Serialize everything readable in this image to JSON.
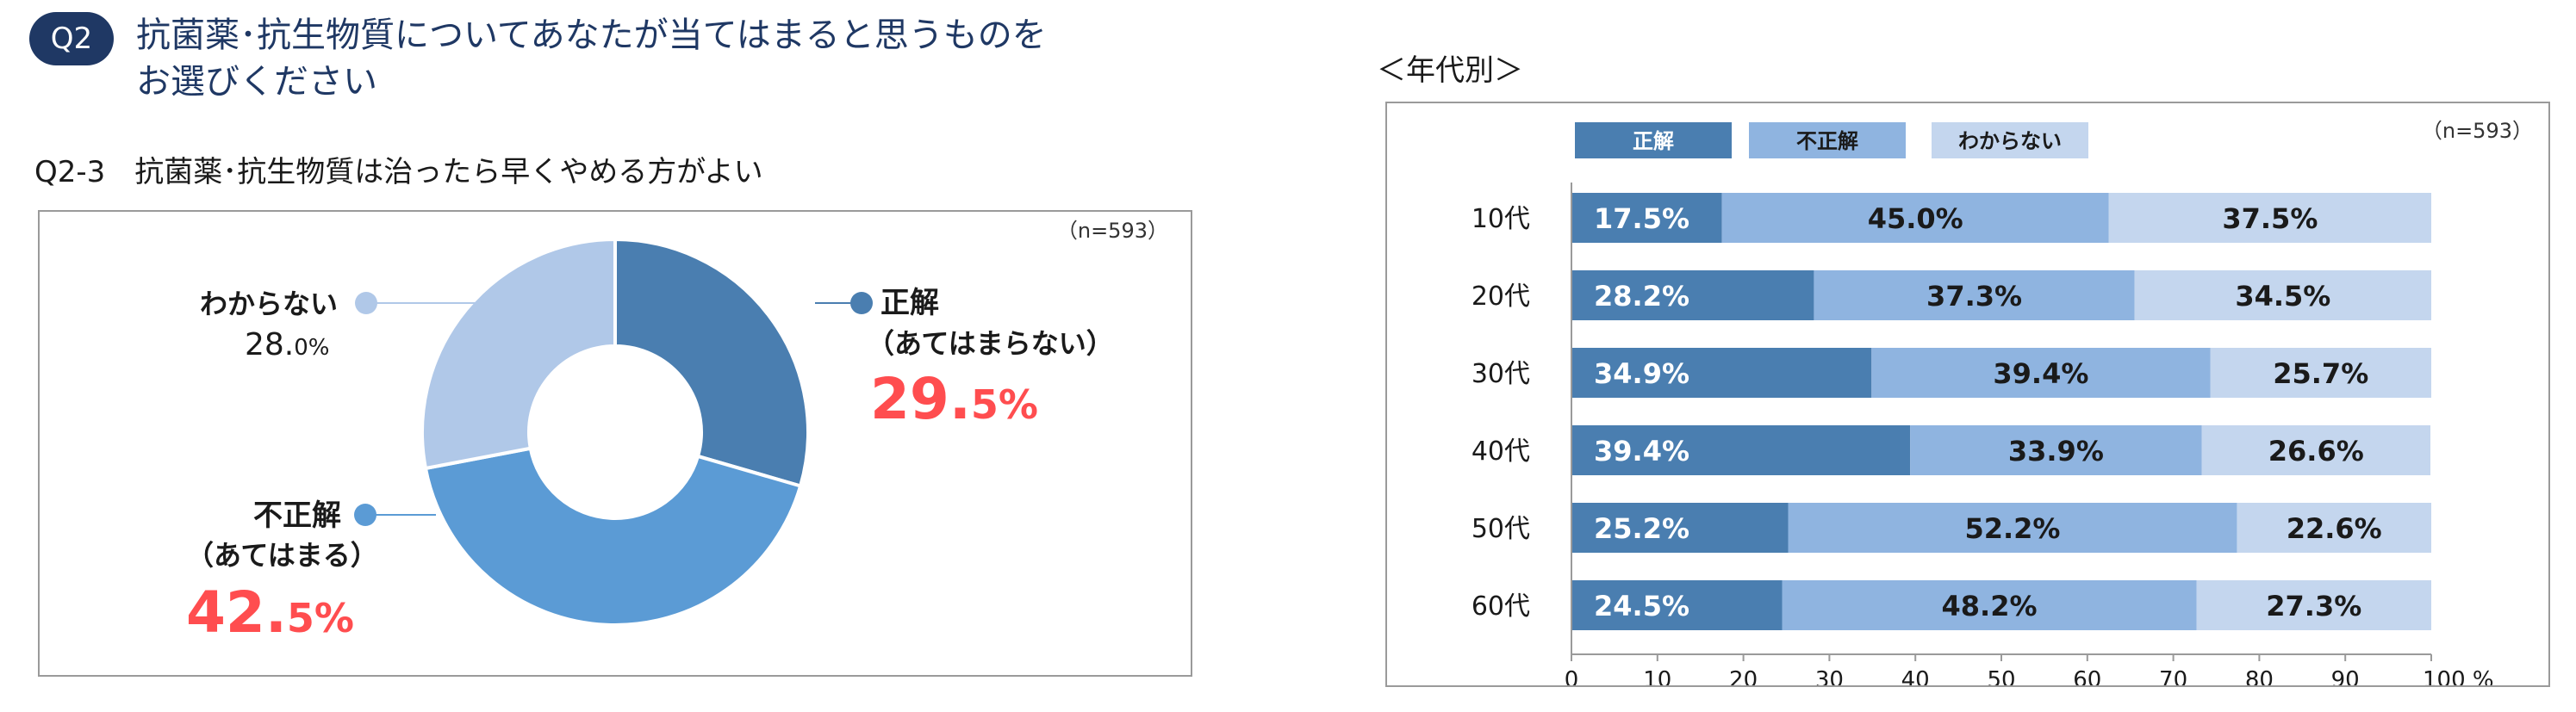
{
  "header": {
    "badge": "Q2",
    "question_line1": "抗菌薬･抗生物質についてあなたが当てはまると思うものを",
    "question_line2": "お選びください",
    "sub_question": "Q2-3　抗菌薬･抗生物質は治ったら早くやめる方がよい"
  },
  "donut": {
    "n_label": "（n=593）",
    "labels": {
      "correct": "正解",
      "correct_sub": "（あてはまらない）",
      "correct_int": "29.",
      "correct_dec": "5%",
      "incorrect": "不正解",
      "incorrect_sub": "（あてはまる）",
      "incorrect_int": "42.",
      "incorrect_dec": "5%",
      "unknown": "わからない",
      "unknown_int": "28.",
      "unknown_dec": "0%"
    }
  },
  "age_chart": {
    "title": "＜年代別＞",
    "n_label": "（n=593）",
    "axis_unit": "%"
  },
  "colors": {
    "correct": "#4a7eb0",
    "incorrect": "#5b9bd5",
    "incorrect_bar": "#8fb4e0",
    "unknown": "#c4d6ee",
    "unknown_donut": "#b0c8e8",
    "highlight": "#ff4d4f",
    "navy": "#1f3864"
  },
  "chart_data": [
    {
      "type": "pie",
      "variant": "donut",
      "title": "Q2-3　抗菌薬･抗生物質は治ったら早くやめる方がよい",
      "categories": [
        "正解（あてはまらない）",
        "不正解（あてはまる）",
        "わからない"
      ],
      "values": [
        29.5,
        42.5,
        28.0
      ],
      "unit": "%",
      "n": "n=593"
    },
    {
      "type": "bar",
      "orientation": "horizontal",
      "stacked": true,
      "title": "＜年代別＞",
      "categories": [
        "10代",
        "20代",
        "30代",
        "40代",
        "50代",
        "60代"
      ],
      "series": [
        {
          "name": "正解",
          "values": [
            17.5,
            28.2,
            34.9,
            39.4,
            25.2,
            24.5
          ]
        },
        {
          "name": "不正解",
          "values": [
            45.0,
            37.3,
            39.4,
            33.9,
            52.2,
            48.2
          ]
        },
        {
          "name": "わからない",
          "values": [
            37.5,
            34.5,
            25.7,
            26.6,
            22.6,
            27.3
          ]
        }
      ],
      "xlim": [
        0,
        100
      ],
      "xticks": [
        0,
        10,
        20,
        30,
        40,
        50,
        60,
        70,
        80,
        90,
        100
      ],
      "xtick_last_label": "100 %",
      "legend_position": "top",
      "grid": false
    }
  ]
}
